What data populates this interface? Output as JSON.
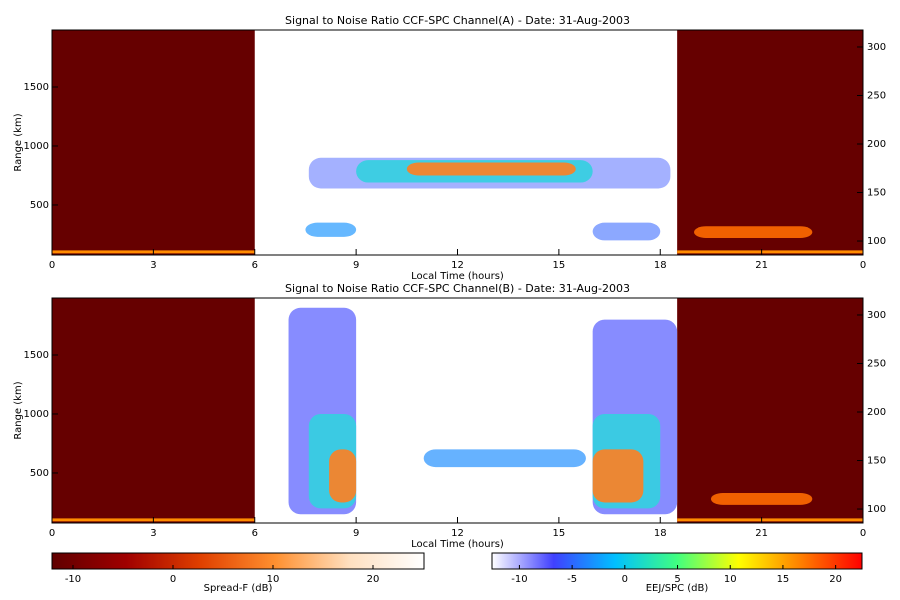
{
  "chart_data": [
    {
      "type": "rti",
      "title": "Signal to Noise Ratio CCF-SPC Channel(A) - Date: 31-Aug-2003",
      "xlabel": "Local Time (hours)",
      "ylabel": "Range (km)",
      "xlim": [
        0,
        24
      ],
      "xticks": [
        0,
        3,
        6,
        9,
        12,
        15,
        18,
        21,
        {
          "value": 24,
          "label": "0"
        }
      ],
      "ylim": [
        76,
        1983
      ],
      "yticks": [
        500,
        1000,
        1500
      ],
      "y2lim": [
        85.6,
        317.5
      ],
      "y2ticks": [
        100,
        150,
        200,
        250,
        300
      ],
      "regions": [
        {
          "x": [
            0,
            6
          ],
          "y": [
            76,
            1983
          ],
          "color": "#660000"
        },
        {
          "x": [
            18.5,
            24
          ],
          "y": [
            76,
            1983
          ],
          "color": "#660000"
        },
        {
          "x": [
            0,
            6
          ],
          "y": [
            90,
            115
          ],
          "color": "#ff8c00"
        },
        {
          "x": [
            18.5,
            24
          ],
          "y": [
            90,
            115
          ],
          "color": "#ff8c00"
        },
        {
          "x": [
            19,
            22.5
          ],
          "y": [
            220,
            320
          ],
          "color": "#ff6a00"
        },
        {
          "x": [
            7.6,
            18.3
          ],
          "y": [
            640,
            900
          ],
          "color": "#9aa8ff"
        },
        {
          "x": [
            9,
            16
          ],
          "y": [
            690,
            880
          ],
          "color": "#33d0e0"
        },
        {
          "x": [
            10.5,
            15.5
          ],
          "y": [
            750,
            860
          ],
          "color": "#ff8020"
        },
        {
          "x": [
            7.5,
            9
          ],
          "y": [
            230,
            350
          ],
          "color": "#55b0ff"
        },
        {
          "x": [
            16,
            18
          ],
          "y": [
            200,
            350
          ],
          "color": "#7f9fff"
        }
      ]
    },
    {
      "type": "rti",
      "title": "Signal to Noise Ratio CCF-SPC Channel(B) - Date: 31-Aug-2003",
      "xlabel": "Local Time (hours)",
      "ylabel": "Range (km)",
      "xlim": [
        0,
        24
      ],
      "xticks": [
        0,
        3,
        6,
        9,
        12,
        15,
        18,
        21,
        {
          "value": 24,
          "label": "0"
        }
      ],
      "ylim": [
        76,
        1983
      ],
      "yticks": [
        500,
        1000,
        1500
      ],
      "y2lim": [
        85.6,
        317.5
      ],
      "y2ticks": [
        100,
        150,
        200,
        250,
        300
      ],
      "regions": [
        {
          "x": [
            0,
            6
          ],
          "y": [
            76,
            1983
          ],
          "color": "#660000"
        },
        {
          "x": [
            18.5,
            24
          ],
          "y": [
            76,
            1983
          ],
          "color": "#660000"
        },
        {
          "x": [
            0,
            6
          ],
          "y": [
            90,
            115
          ],
          "color": "#ff8c00"
        },
        {
          "x": [
            18.5,
            24
          ],
          "y": [
            90,
            115
          ],
          "color": "#ff8c00"
        },
        {
          "x": [
            19.5,
            22.5
          ],
          "y": [
            230,
            330
          ],
          "color": "#ff6a00"
        },
        {
          "x": [
            7,
            9
          ],
          "y": [
            150,
            1900
          ],
          "color": "#7a80ff"
        },
        {
          "x": [
            7.6,
            9
          ],
          "y": [
            200,
            1000
          ],
          "color": "#33d0e0"
        },
        {
          "x": [
            8.2,
            9
          ],
          "y": [
            250,
            700
          ],
          "color": "#ff8020"
        },
        {
          "x": [
            16,
            18.5
          ],
          "y": [
            150,
            1800
          ],
          "color": "#7a80ff"
        },
        {
          "x": [
            16,
            18
          ],
          "y": [
            200,
            1000
          ],
          "color": "#33d0e0"
        },
        {
          "x": [
            16,
            17.5
          ],
          "y": [
            250,
            700
          ],
          "color": "#ff8020"
        },
        {
          "x": [
            11,
            15.8
          ],
          "y": [
            550,
            700
          ],
          "color": "#55aaff"
        }
      ]
    },
    {
      "type": "colorbar",
      "label": "Spread-F (dB)",
      "lim": [
        -12.1,
        25.1
      ],
      "ticks": [
        -10,
        0,
        10,
        20
      ],
      "colors": [
        "#600000",
        "#a00000",
        "#e04000",
        "#ff9030",
        "#ffe0c0",
        "#ffffff"
      ]
    },
    {
      "type": "colorbar",
      "label": "EEJ/SPC (dB)",
      "lim": [
        -12.6,
        22.5
      ],
      "ticks": [
        -10,
        -5,
        0,
        5,
        10,
        15,
        20
      ],
      "colors": [
        "#ffffff",
        "#4040ff",
        "#00c0ff",
        "#40ff80",
        "#ffff00",
        "#ff8000",
        "#ff0000"
      ]
    }
  ]
}
